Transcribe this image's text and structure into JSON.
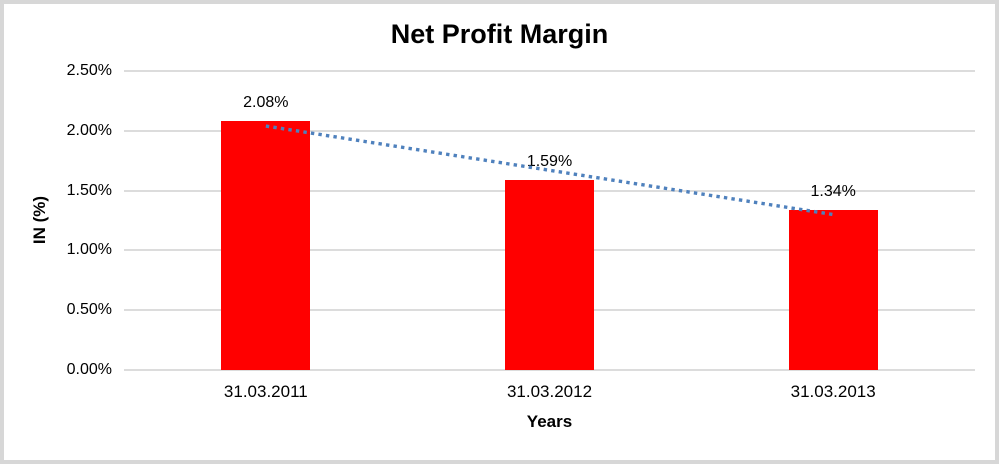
{
  "chart_data": {
    "type": "bar",
    "title": "Net Profit Margin",
    "categories": [
      "31.03.2011",
      "31.03.2012",
      "31.03.2013"
    ],
    "values": [
      2.08,
      1.59,
      1.34
    ],
    "data_labels": [
      "2.08%",
      "1.59%",
      "1.34%"
    ],
    "xlabel": "Years",
    "ylabel": "IN (%)",
    "ylim": [
      0,
      2.5
    ],
    "ytick_values": [
      0,
      0.5,
      1.0,
      1.5,
      2.0,
      2.5
    ],
    "ytick_labels": [
      "0.00%",
      "0.50%",
      "1.00%",
      "1.50%",
      "2.00%",
      "2.50%"
    ],
    "grid": true,
    "legend": "none",
    "bar_color": "#FF0000",
    "gridline_color": "#DCDCDC",
    "frame_color": "#D7D7D7",
    "text_color": "#000000",
    "trendline": {
      "style": "dotted",
      "color": "#4F81BD",
      "start_value": 2.04,
      "end_value": 1.3
    }
  }
}
